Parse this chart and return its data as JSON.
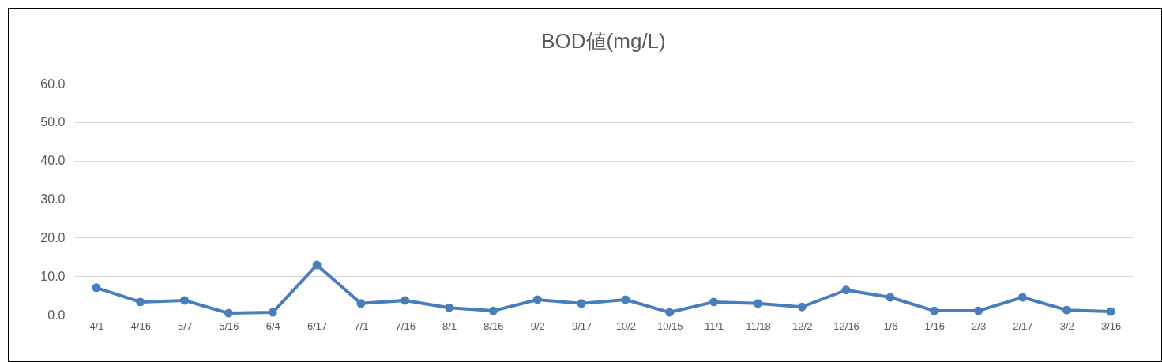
{
  "chart_data": {
    "type": "line",
    "title": "BOD値(mg/L)",
    "categories": [
      "4/1",
      "4/16",
      "5/7",
      "5/16",
      "6/4",
      "6/17",
      "7/1",
      "7/16",
      "8/1",
      "8/16",
      "9/2",
      "9/17",
      "10/2",
      "10/15",
      "11/1",
      "11/18",
      "12/2",
      "12/16",
      "1/6",
      "1/16",
      "2/3",
      "2/17",
      "3/2",
      "3/16"
    ],
    "series": [
      {
        "color": "#4a7ebb",
        "values": [
          7.0,
          3.3,
          3.7,
          0.4,
          0.6,
          12.9,
          2.9,
          3.7,
          1.8,
          1.0,
          3.9,
          2.9,
          3.9,
          0.6,
          3.3,
          2.9,
          2.0,
          6.4,
          4.5,
          1.0,
          1.0,
          4.5,
          1.2,
          0.8
        ]
      }
    ],
    "ylim": [
      0,
      60
    ],
    "yticks": [
      {
        "value": 0,
        "label": "0.0"
      },
      {
        "value": 10,
        "label": "10.0"
      },
      {
        "value": 20,
        "label": "20.0"
      },
      {
        "value": 30,
        "label": "30.0"
      },
      {
        "value": 40,
        "label": "40.0"
      },
      {
        "value": 50,
        "label": "50.0"
      },
      {
        "value": 60,
        "label": "60.0"
      }
    ],
    "grid": "y",
    "marker": "circle",
    "line_style": "solid"
  }
}
